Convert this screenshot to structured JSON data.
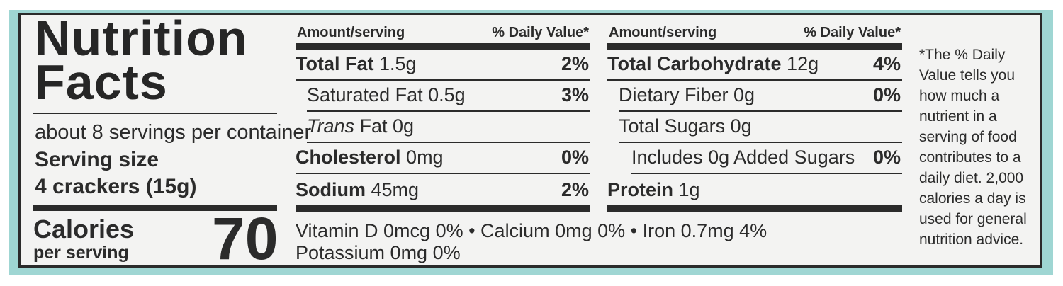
{
  "label": {
    "title_line1": "Nutrition",
    "title_line2": "Facts",
    "servings_per_container": "about 8 servings per container",
    "serving_size_label": "Serving size",
    "serving_size_value": "4 crackers (15g)",
    "calories_label": "Calories",
    "calories_sub": "per serving",
    "calories_value": "70"
  },
  "left_table": {
    "header_amount": "Amount/serving",
    "header_dv": "% Daily Value*",
    "rows": [
      {
        "name": "Total Fat",
        "amount": "1.5g",
        "dv": "2%"
      },
      {
        "name": "Saturated Fat 0.5g",
        "amount": "",
        "dv": "3%"
      },
      {
        "name": "Trans",
        "amount": "Fat 0g",
        "dv": ""
      },
      {
        "name": "Cholesterol",
        "amount": "0mg",
        "dv": "0%"
      },
      {
        "name": "Sodium",
        "amount": "45mg",
        "dv": "2%"
      }
    ]
  },
  "right_table": {
    "header_amount": "Amount/serving",
    "header_dv": "% Daily Value*",
    "rows": [
      {
        "name": "Total Carbohydrate",
        "amount": "12g",
        "dv": "4%"
      },
      {
        "name": "Dietary Fiber 0g",
        "amount": "",
        "dv": "0%"
      },
      {
        "name": "Total Sugars 0g",
        "amount": "",
        "dv": ""
      },
      {
        "name": "Includes 0g Added Sugars",
        "amount": "",
        "dv": "0%"
      },
      {
        "name": "Protein",
        "amount": "1g",
        "dv": ""
      }
    ]
  },
  "vitamins": {
    "line1": "Vitamin D 0mcg 0% • Calcium 0mg 0% • Iron 0.7mg 4%",
    "line2": "Potassium 0mg 0%"
  },
  "footnote": "*The % Daily Value tells you how much a nutrient in a serving of food contributes to a daily diet. 2,000 calories a day is used for general nutrition advice."
}
